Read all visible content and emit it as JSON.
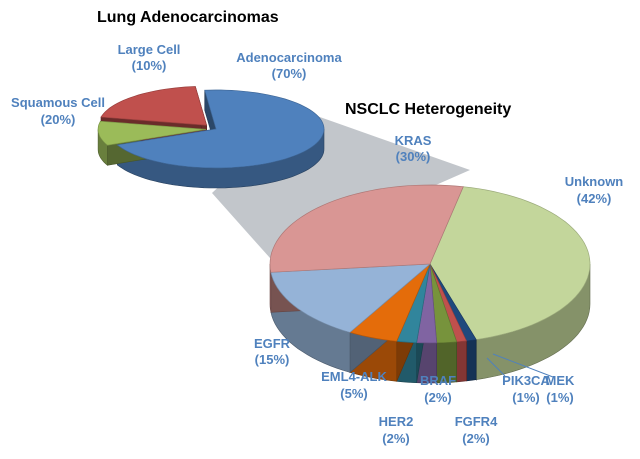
{
  "colors": {
    "adenocarcinoma": "#4f81bd",
    "squamous": "#c0504d",
    "large_cell": "#9bbb59",
    "kras": "#d99694",
    "unknown": "#c3d69b",
    "egfr": "#95b3d7",
    "eml4": "#e46c0a",
    "her2": "#31859c",
    "braf": "#8064a2",
    "fgfr4": "#77933c",
    "pik3ca": "#c0504d",
    "mek": "#1f497d",
    "label_text": "#4f81bd",
    "connector": "#b7bcc2"
  },
  "chart_data": [
    {
      "type": "pie",
      "title": "Lung Adenocarcinomas",
      "slices": [
        {
          "key": "adeno",
          "name": "Adenocarcinoma",
          "pct_label": "(70%)",
          "value": 70,
          "color_key": "adenocarcinoma"
        },
        {
          "key": "large",
          "name": "Large Cell",
          "pct_label": "(10%)",
          "value": 10,
          "color_key": "large_cell"
        },
        {
          "key": "squam",
          "name": "Squamous Cell",
          "pct_label": "(20%)",
          "value": 20,
          "color_key": "squamous"
        }
      ]
    },
    {
      "type": "pie",
      "title": "NSCLC Heterogeneity",
      "slices": [
        {
          "key": "unknown",
          "name": "Unknown",
          "pct_label": "(42%)",
          "value": 42,
          "color_key": "unknown"
        },
        {
          "key": "mek",
          "name": "MEK",
          "pct_label": "(1%)",
          "value": 1,
          "color_key": "mek"
        },
        {
          "key": "pik3ca",
          "name": "PIK3CA",
          "pct_label": "(1%)",
          "value": 1,
          "color_key": "pik3ca"
        },
        {
          "key": "fgfr4",
          "name": "FGFR4",
          "pct_label": "(2%)",
          "value": 2,
          "color_key": "fgfr4"
        },
        {
          "key": "braf",
          "name": "BRAF",
          "pct_label": "(2%)",
          "value": 2,
          "color_key": "braf"
        },
        {
          "key": "her2",
          "name": "HER2",
          "pct_label": "(2%)",
          "value": 2,
          "color_key": "her2"
        },
        {
          "key": "eml4",
          "name": "EML4-ALK",
          "pct_label": "(5%)",
          "value": 5,
          "color_key": "eml4"
        },
        {
          "key": "egfr",
          "name": "EGFR",
          "pct_label": "(15%)",
          "value": 15,
          "color_key": "egfr"
        },
        {
          "key": "kras",
          "name": "KRAS",
          "pct_label": "(30%)",
          "value": 30,
          "color_key": "kras"
        }
      ]
    }
  ]
}
